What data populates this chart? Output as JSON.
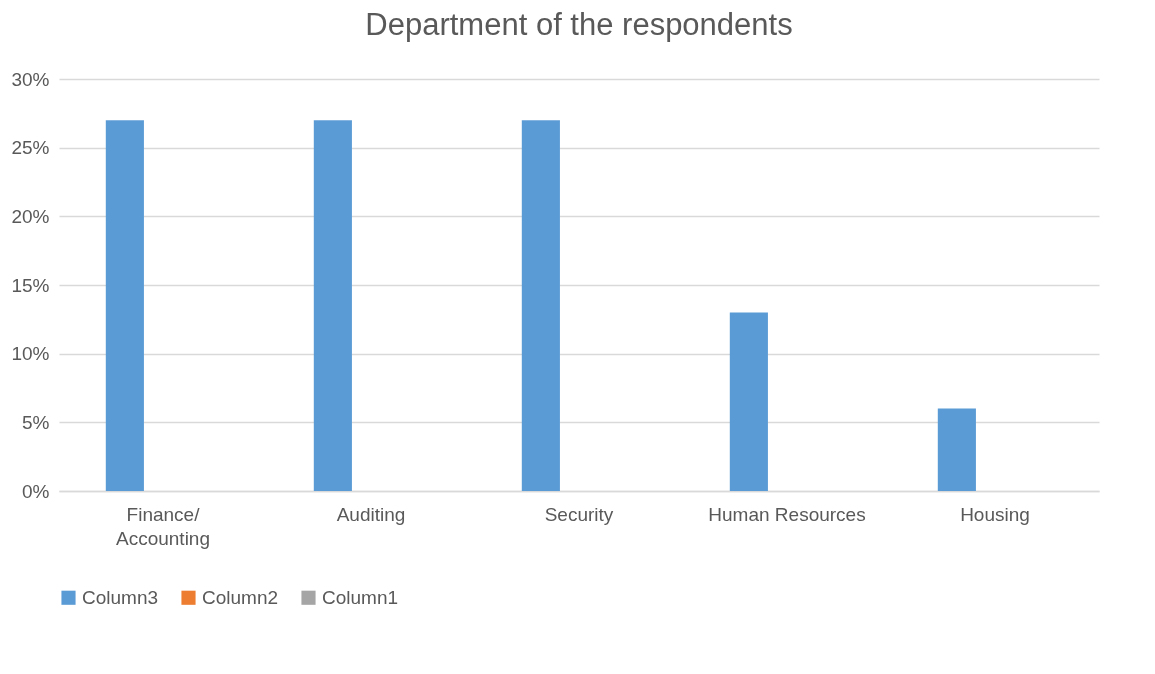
{
  "chart_data": {
    "type": "bar",
    "title": "Department of the respondents",
    "categories": [
      "Finance/ Accounting",
      "Auditing",
      "Security",
      "Human Resources",
      "Housing"
    ],
    "series": [
      {
        "name": "Column3",
        "color": "#5b9bd5",
        "values": [
          27,
          27,
          27,
          13,
          6
        ]
      },
      {
        "name": "Column2",
        "color": "#ed7d31",
        "values": [
          null,
          null,
          null,
          null,
          null
        ]
      },
      {
        "name": "Column1",
        "color": "#a5a5a5",
        "values": [
          null,
          null,
          null,
          null,
          null
        ]
      }
    ],
    "ylim": [
      0,
      30
    ],
    "yticks": [
      {
        "value": 0,
        "label": "0%"
      },
      {
        "value": 5,
        "label": "5%"
      },
      {
        "value": 10,
        "label": "10%"
      },
      {
        "value": 15,
        "label": "15%"
      },
      {
        "value": 20,
        "label": "20%"
      },
      {
        "value": 25,
        "label": "25%"
      },
      {
        "value": 30,
        "label": "30%"
      }
    ],
    "grid": "y",
    "legend": "bottom"
  }
}
